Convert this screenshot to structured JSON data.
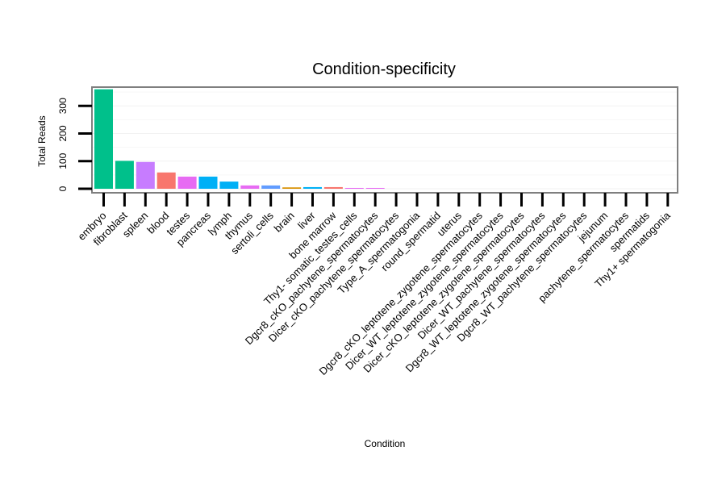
{
  "chart_data": {
    "type": "bar",
    "title": "Condition-specificity",
    "xlabel": "Condition",
    "ylabel": "Total Reads",
    "ylim": [
      0,
      370
    ],
    "yticks": [
      0,
      100,
      200,
      300
    ],
    "legend": "none",
    "grid": "horizontal",
    "categories": [
      "embryo",
      "fibroblast",
      "spleen",
      "blood",
      "testes",
      "pancreas",
      "lymph",
      "thymus",
      "sertoli_cells",
      "brain",
      "liver",
      "bone marrow",
      "Thy1- somatic_testes_cells",
      "Dgcr8_cKO_pachytene_spermatocytes",
      "Dicer_cKO_pachytene_spermatocytes",
      "Type_A_spermatogonia",
      "round_spermatid",
      "uterus",
      "Dgcr8_cKO_leptotene_zygotene_spermatocytes",
      "Dicer_WT_leptotene_zygotene_spermatocytes",
      "Dicer_cKO_leptotene_zygotene_spermatocytes",
      "Dicer_WT_pachytene_spermatocytes",
      "Dgcr8_WT_leptotene_zygotene_spermatocytes",
      "Dgcr8_WT_pachytene_spermatocytes",
      "jejunum",
      "pachytene_spermatocytes",
      "spermatids",
      "Thy1+ spermatogonia"
    ],
    "values": [
      360,
      101,
      97,
      59,
      44,
      44,
      26,
      12,
      12,
      5,
      6,
      6,
      3,
      3,
      0,
      0,
      0,
      0,
      0,
      0,
      0,
      0,
      0,
      0,
      0,
      0,
      0,
      0
    ],
    "colors": [
      "#00C08B",
      "#00C08B",
      "#C77CFF",
      "#F8766D",
      "#E76BF3",
      "#00B0F6",
      "#00B0F6",
      "#E76BF3",
      "#619CFF",
      "#D89000",
      "#00B0F6",
      "#F8766D",
      "#E76BF3",
      "#E76BF3",
      "#A3A500",
      "#A3A500",
      "#A3A500",
      "#A3A500",
      "#A3A500",
      "#A3A500",
      "#A3A500",
      "#A3A500",
      "#A3A500",
      "#A3A500",
      "#A3A500",
      "#A3A500",
      "#A3A500",
      "#A3A500"
    ]
  }
}
